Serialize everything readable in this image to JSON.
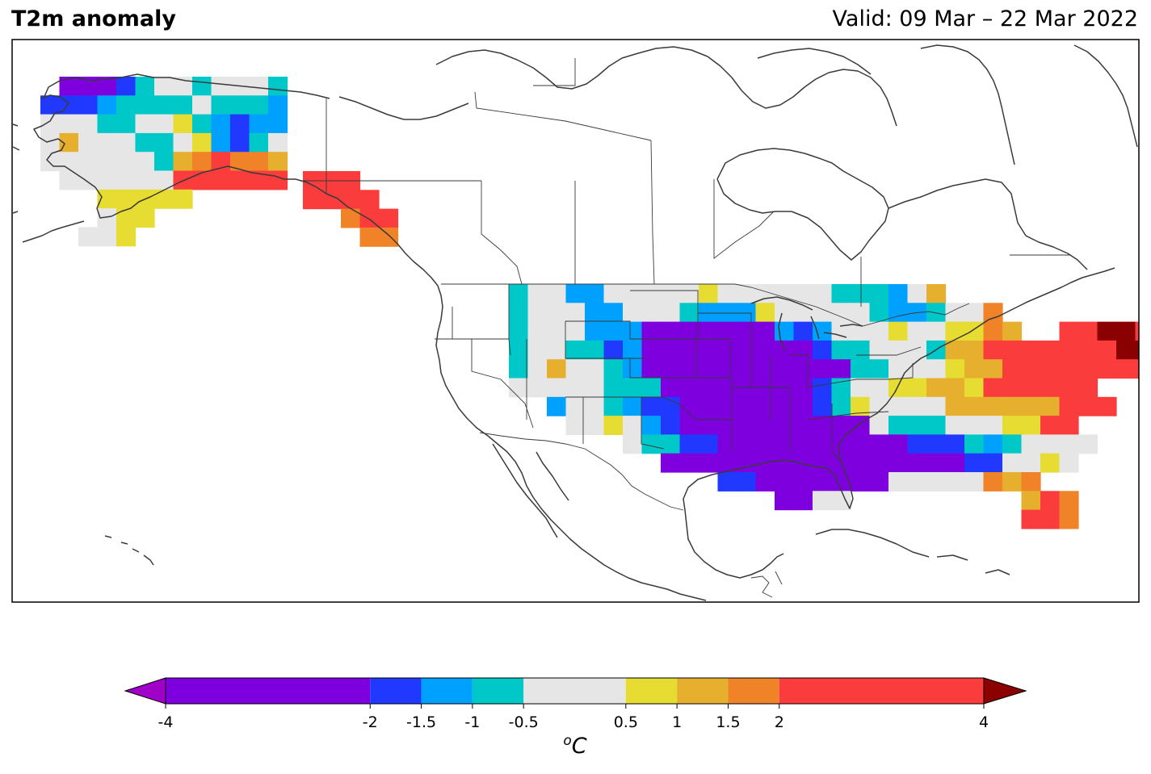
{
  "title": "T2m anomaly",
  "valid": "Valid: 09 Mar – 22 Mar 2022",
  "colorbar": {
    "unit_base": "C",
    "unit_sup": "o",
    "ticks": [
      "-4",
      "-2",
      "-1.5",
      "-1",
      "-0.5",
      "0.5",
      "1",
      "1.5",
      "2",
      "4"
    ],
    "tick_values": [
      -4,
      -2,
      -1.5,
      -1,
      -0.5,
      0.5,
      1,
      1.5,
      2,
      4
    ],
    "bins": [
      {
        "from": -4,
        "to": -2,
        "color": "#7f00df"
      },
      {
        "from": -2,
        "to": -1.5,
        "color": "#2138ff"
      },
      {
        "from": -1.5,
        "to": -1,
        "color": "#00a0ff"
      },
      {
        "from": -1,
        "to": -0.5,
        "color": "#00c8c8"
      },
      {
        "from": -0.5,
        "to": 0.5,
        "color": "#e6e6e6"
      },
      {
        "from": 0.5,
        "to": 1,
        "color": "#e6dc32"
      },
      {
        "from": 1,
        "to": 1.5,
        "color": "#e6af2d"
      },
      {
        "from": 1.5,
        "to": 2,
        "color": "#f08228"
      },
      {
        "from": 2,
        "to": 4,
        "color": "#fa3c3c"
      }
    ],
    "under_color": "#a000c8",
    "over_color": "#8b0000"
  },
  "map": {
    "region": "North America",
    "projection": "PlateCarree",
    "features": [
      "coastlines",
      "country borders",
      "US state lines"
    ],
    "anomaly_grid_legend": {
      "P": "#7f00df",
      "B": "#2138ff",
      "L": "#00a0ff",
      "C": "#00c8c8",
      "G": "#e6e6e6",
      "Y": "#e6dc32",
      "O": "#e6af2d",
      "R": "#f08228",
      "X": "#fa3c3c",
      "D": "#8b0000"
    }
  }
}
